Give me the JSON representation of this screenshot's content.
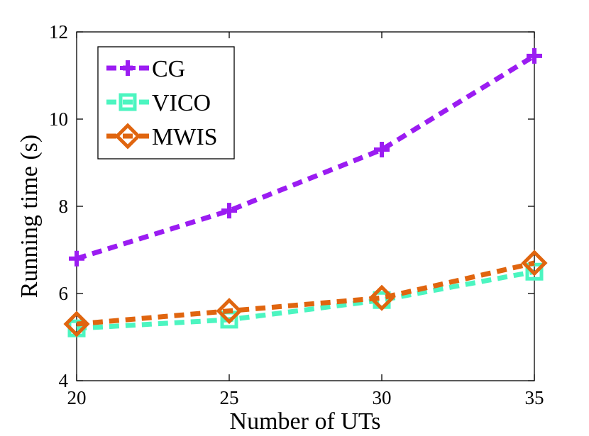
{
  "chart_data": {
    "type": "line",
    "xlabel": "Number of UTs",
    "ylabel": "Running time (s)",
    "xlim": [
      20,
      35
    ],
    "ylim": [
      4,
      12
    ],
    "xticks": [
      "20",
      "25",
      "30",
      "35"
    ],
    "yticks": [
      "4",
      "6",
      "8",
      "10",
      "12"
    ],
    "x": [
      20,
      25,
      30,
      35
    ],
    "grid": false,
    "legend_position": "top-left",
    "series": [
      {
        "name": "CG",
        "values": [
          6.8,
          7.9,
          9.3,
          11.45
        ],
        "color": "#9b1cf2",
        "marker": "plus"
      },
      {
        "name": "VICO",
        "values": [
          5.2,
          5.4,
          5.85,
          6.5
        ],
        "color": "#4cf5c0",
        "marker": "square"
      },
      {
        "name": "MWIS",
        "values": [
          5.3,
          5.6,
          5.9,
          6.7
        ],
        "color": "#e0650f",
        "marker": "diamond"
      }
    ]
  }
}
